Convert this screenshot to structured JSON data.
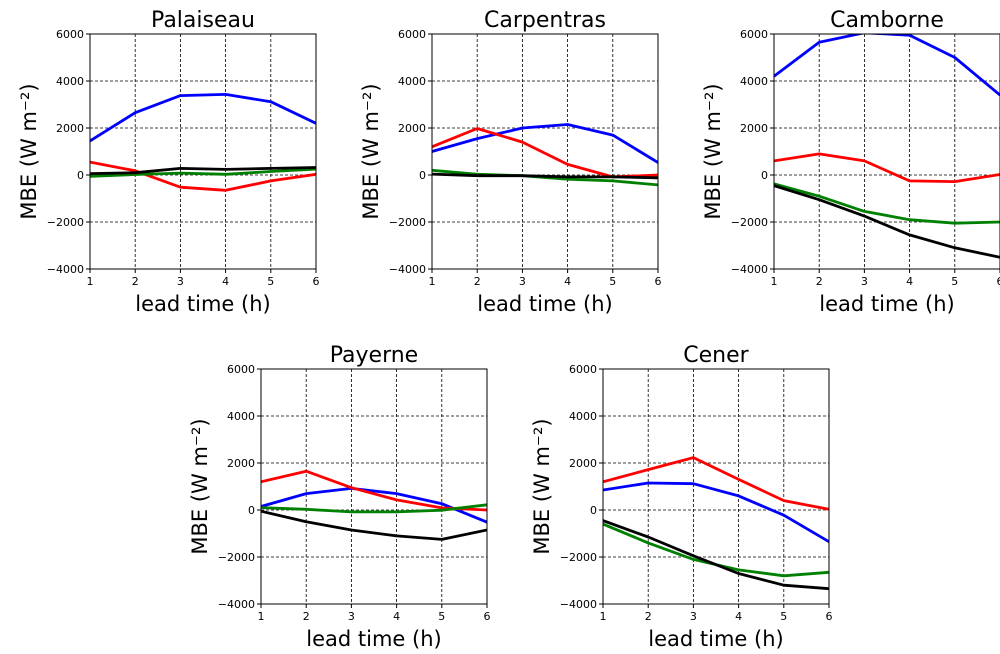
{
  "chart_data": [
    {
      "type": "line",
      "title": "Palaiseau",
      "xlabel": "lead time (h)",
      "ylabel": "MBE (W m⁻²)",
      "x": [
        1,
        2,
        3,
        4,
        5,
        6
      ],
      "xlim": [
        1,
        6
      ],
      "ylim": [
        -4000,
        6000
      ],
      "yticks": [
        -4000,
        -2000,
        0,
        2000,
        4000,
        6000
      ],
      "grid": true,
      "series": [
        {
          "color": "#0000ff",
          "values": [
            1450,
            2650,
            3380,
            3430,
            3120,
            2200
          ]
        },
        {
          "color": "#ff0000",
          "values": [
            550,
            180,
            -520,
            -650,
            -250,
            30
          ]
        },
        {
          "color": "#008000",
          "values": [
            -60,
            20,
            80,
            30,
            150,
            250
          ]
        },
        {
          "color": "#000000",
          "values": [
            60,
            100,
            280,
            240,
            280,
            320
          ]
        }
      ]
    },
    {
      "type": "line",
      "title": "Carpentras",
      "xlabel": "lead time (h)",
      "ylabel": "MBE (W m⁻²)",
      "x": [
        1,
        2,
        3,
        4,
        5,
        6
      ],
      "xlim": [
        1,
        6
      ],
      "ylim": [
        -4000,
        6000
      ],
      "yticks": [
        -4000,
        -2000,
        0,
        2000,
        4000,
        6000
      ],
      "grid": true,
      "series": [
        {
          "color": "#0000ff",
          "values": [
            1000,
            1550,
            2000,
            2150,
            1700,
            530
          ]
        },
        {
          "color": "#ff0000",
          "values": [
            1200,
            1980,
            1400,
            450,
            -80,
            0
          ]
        },
        {
          "color": "#008000",
          "values": [
            200,
            30,
            -30,
            -180,
            -250,
            -420
          ]
        },
        {
          "color": "#000000",
          "values": [
            40,
            -30,
            -30,
            -80,
            -80,
            -120
          ]
        }
      ]
    },
    {
      "type": "line",
      "title": "Camborne",
      "xlabel": "lead time (h)",
      "ylabel": "MBE (W m⁻²)",
      "x": [
        1,
        2,
        3,
        4,
        5,
        6
      ],
      "xlim": [
        1,
        6
      ],
      "ylim": [
        -4000,
        6000
      ],
      "yticks": [
        -4000,
        -2000,
        0,
        2000,
        4000,
        6000
      ],
      "grid": true,
      "series": [
        {
          "color": "#0000ff",
          "values": [
            4200,
            5650,
            6050,
            5950,
            5000,
            3400
          ]
        },
        {
          "color": "#ff0000",
          "values": [
            600,
            900,
            600,
            -250,
            -280,
            20
          ]
        },
        {
          "color": "#008000",
          "values": [
            -380,
            -900,
            -1550,
            -1900,
            -2050,
            -2000
          ]
        },
        {
          "color": "#000000",
          "values": [
            -450,
            -1050,
            -1750,
            -2550,
            -3100,
            -3500
          ]
        }
      ]
    },
    {
      "type": "line",
      "title": "Payerne",
      "xlabel": "lead time (h)",
      "ylabel": "MBE (W m⁻²)",
      "x": [
        1,
        2,
        3,
        4,
        5,
        6
      ],
      "xlim": [
        1,
        6
      ],
      "ylim": [
        -4000,
        6000
      ],
      "yticks": [
        -4000,
        -2000,
        0,
        2000,
        4000,
        6000
      ],
      "grid": true,
      "series": [
        {
          "color": "#0000ff",
          "values": [
            150,
            700,
            920,
            700,
            270,
            -520
          ]
        },
        {
          "color": "#ff0000",
          "values": [
            1200,
            1650,
            950,
            430,
            90,
            0
          ]
        },
        {
          "color": "#008000",
          "values": [
            100,
            30,
            -80,
            -80,
            -10,
            220
          ]
        },
        {
          "color": "#000000",
          "values": [
            -50,
            -500,
            -850,
            -1100,
            -1250,
            -850
          ]
        }
      ]
    },
    {
      "type": "line",
      "title": "Cener",
      "xlabel": "lead time (h)",
      "ylabel": "MBE (W m⁻²)",
      "x": [
        1,
        2,
        3,
        4,
        5,
        6
      ],
      "xlim": [
        1,
        6
      ],
      "ylim": [
        -4000,
        6000
      ],
      "yticks": [
        -4000,
        -2000,
        0,
        2000,
        4000,
        6000
      ],
      "grid": true,
      "series": [
        {
          "color": "#0000ff",
          "values": [
            850,
            1150,
            1120,
            600,
            -220,
            -1350
          ]
        },
        {
          "color": "#ff0000",
          "values": [
            1200,
            1720,
            2230,
            1300,
            400,
            30
          ]
        },
        {
          "color": "#008000",
          "values": [
            -600,
            -1400,
            -2100,
            -2550,
            -2800,
            -2650
          ]
        },
        {
          "color": "#000000",
          "values": [
            -450,
            -1150,
            -1950,
            -2700,
            -3200,
            -3350
          ]
        }
      ]
    }
  ]
}
